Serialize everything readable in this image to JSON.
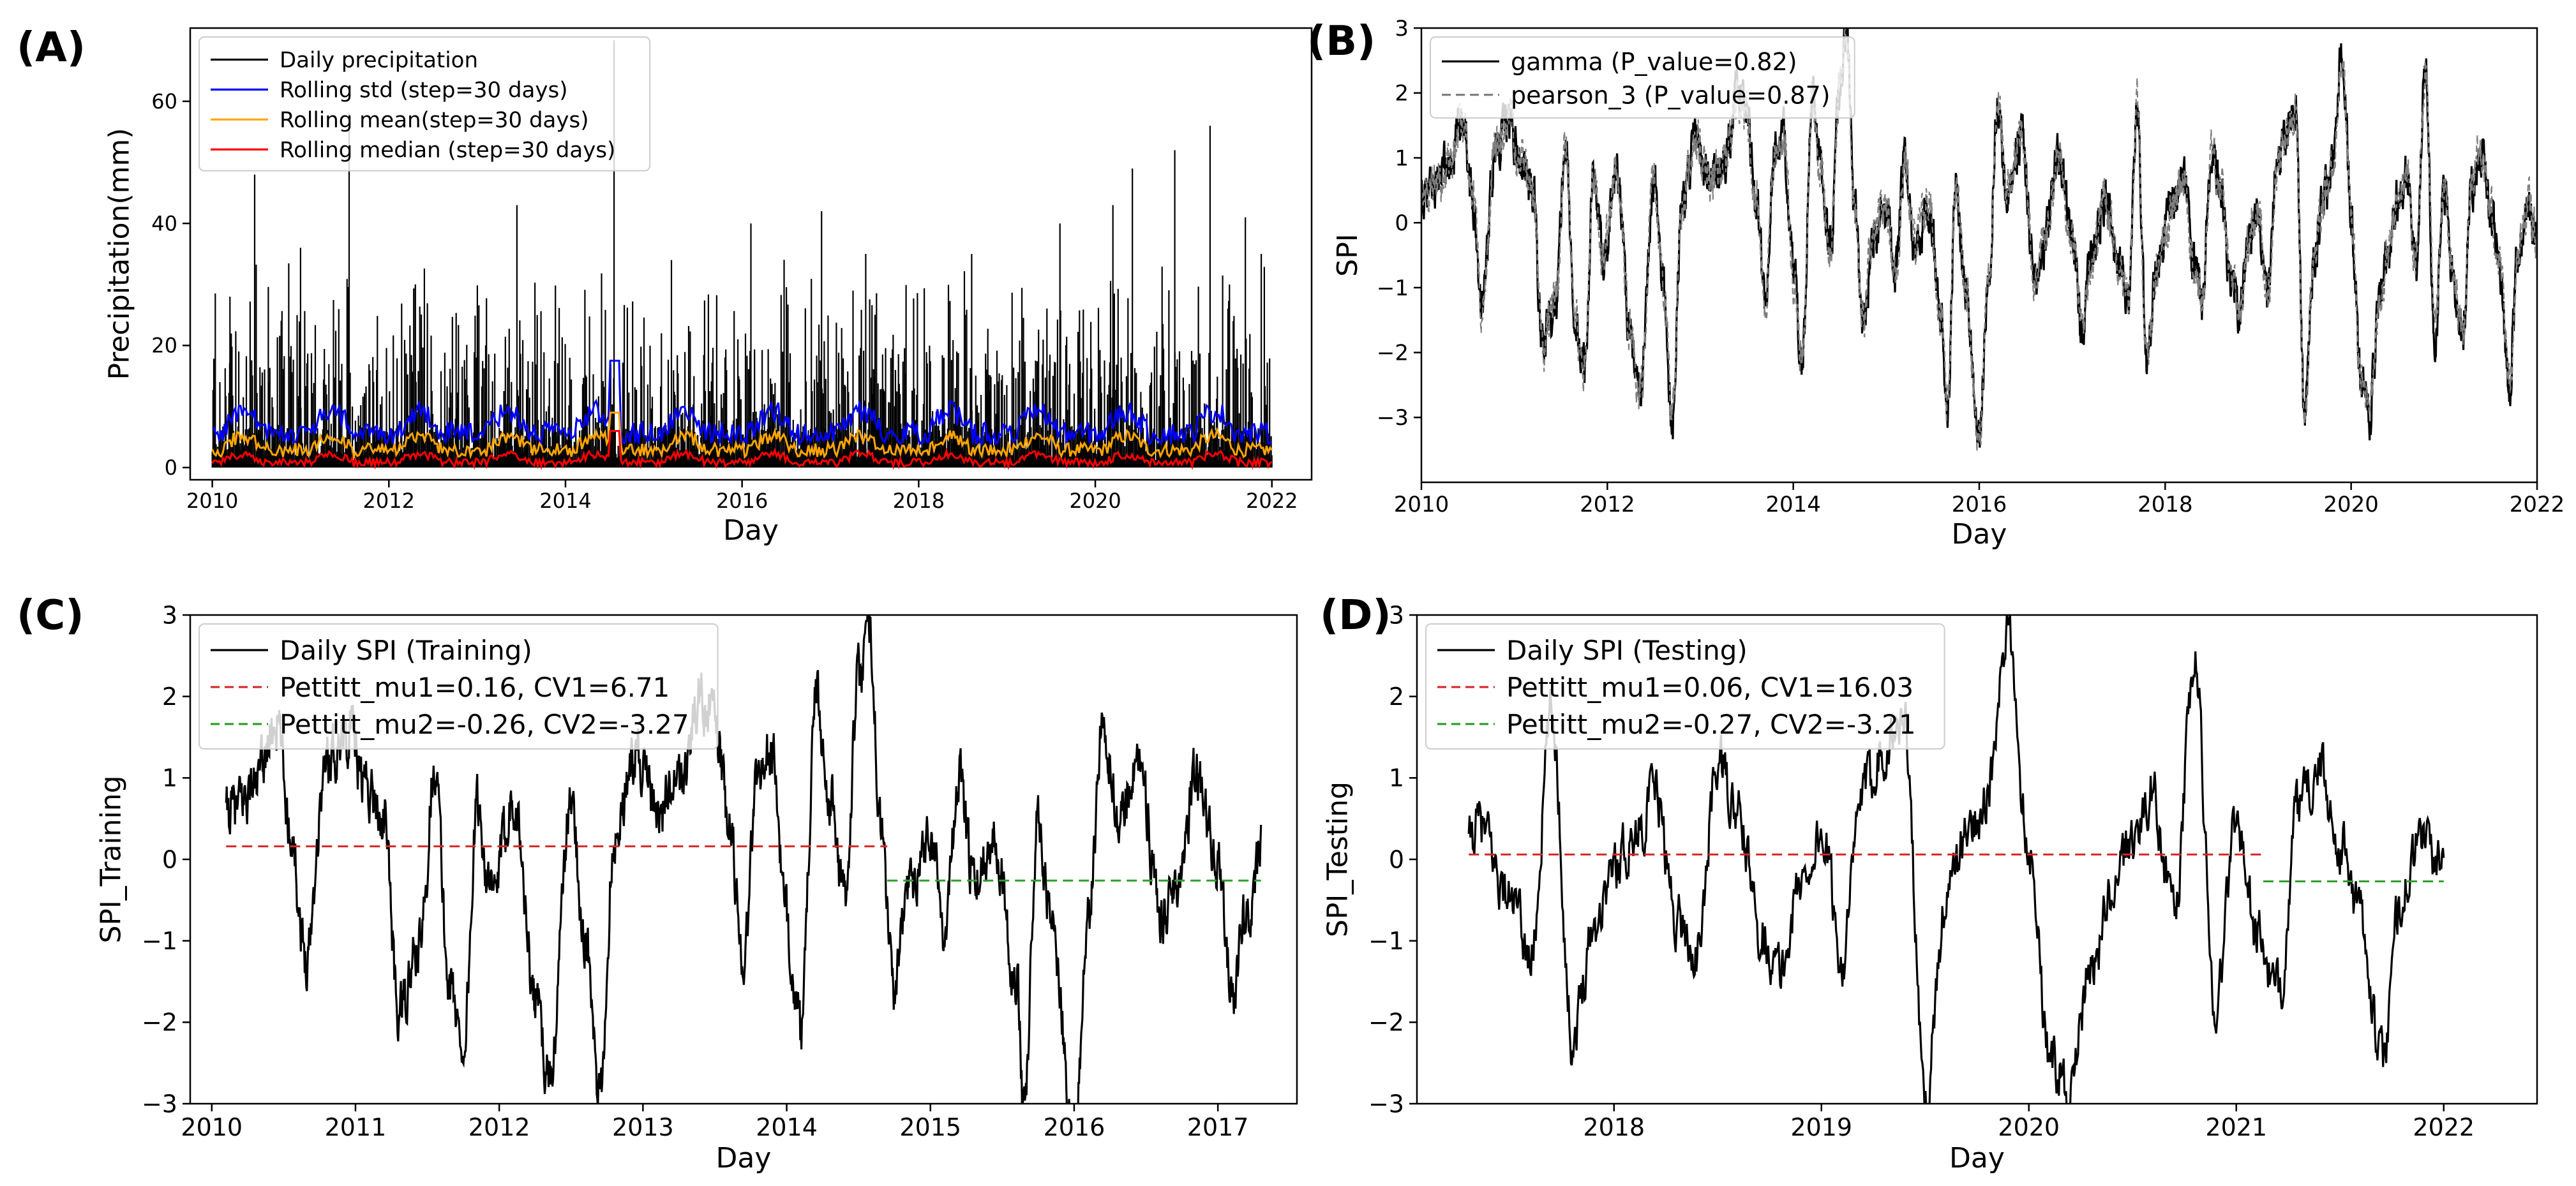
{
  "colors": {
    "black": "#000000",
    "blue": "#0000ff",
    "orange": "#ffa500",
    "red": "#ff0000",
    "gray": "#808080",
    "green": "#008000",
    "pettitt_red": "#d62728",
    "pettitt_green": "#2ca02c"
  },
  "chart_data": [
    {
      "panel_label": "(A)",
      "type": "line",
      "title": "",
      "xlabel": "Day",
      "ylabel": "Precipitation(mm)",
      "xlim": [
        2009.75,
        2022.45
      ],
      "ylim": [
        -2,
        72
      ],
      "xticks": [
        2010,
        2012,
        2014,
        2016,
        2018,
        2020,
        2022
      ],
      "xtick_labels": [
        "2010",
        "2012",
        "2014",
        "2016",
        "2018",
        "2020",
        "2022"
      ],
      "yticks": [
        0,
        20,
        40,
        60
      ],
      "ytick_labels": [
        "0",
        "20",
        "40",
        "60"
      ],
      "legend_position": "upper-left",
      "series": [
        {
          "name": "Daily precipitation",
          "color": "#000000",
          "style": "solid",
          "kind": "spikes",
          "x_start": 2010.0,
          "x_end": 2022.0,
          "baseline": [
            1,
            7
          ],
          "peak_max": 70,
          "peaks": [
            [
              2010.2,
              28
            ],
            [
              2010.48,
              48
            ],
            [
              2011.0,
              36
            ],
            [
              2011.55,
              58
            ],
            [
              2012.3,
              30
            ],
            [
              2013.45,
              43
            ],
            [
              2014.55,
              70
            ],
            [
              2015.2,
              34
            ],
            [
              2016.1,
              40
            ],
            [
              2016.9,
              42
            ],
            [
              2017.4,
              35
            ],
            [
              2018.6,
              35
            ],
            [
              2019.6,
              40
            ],
            [
              2020.2,
              43
            ],
            [
              2020.42,
              49
            ],
            [
              2020.9,
              52
            ],
            [
              2021.3,
              56
            ],
            [
              2021.7,
              41
            ],
            [
              2021.88,
              35
            ]
          ]
        },
        {
          "name": "Rolling std (step=30 days)",
          "color": "#0000ff",
          "style": "solid",
          "kind": "smooth",
          "base": 5,
          "amplitude": 4,
          "max": 17.5
        },
        {
          "name": "Rolling mean(step=30 days)",
          "color": "#ffa500",
          "style": "solid",
          "kind": "smooth",
          "base": 2.5,
          "amplitude": 2.5,
          "max": 9
        },
        {
          "name": "Rolling median (step=30 days)",
          "color": "#ff0000",
          "style": "solid",
          "kind": "smooth",
          "base": 0.6,
          "amplitude": 1.5,
          "max": 6
        }
      ]
    },
    {
      "panel_label": "(B)",
      "type": "line",
      "title": "",
      "xlabel": "Day",
      "ylabel": "SPI",
      "xlim": [
        2010,
        2022
      ],
      "ylim": [
        -4,
        3
      ],
      "xticks": [
        2010,
        2012,
        2014,
        2016,
        2018,
        2020,
        2022
      ],
      "xtick_labels": [
        "2010",
        "2012",
        "2014",
        "2016",
        "2018",
        "2020",
        "2022"
      ],
      "yticks": [
        -3,
        -2,
        -1,
        0,
        1,
        2,
        3
      ],
      "ytick_labels": [
        "−3",
        "−2",
        "−1",
        "0",
        "1",
        "2",
        "3"
      ],
      "legend_position": "upper-left",
      "series": [
        {
          "name": "gamma (P_value=0.82)",
          "color": "#000000",
          "style": "solid",
          "kind": "spi"
        },
        {
          "name": "pearson_3 (P_value=0.87)",
          "color": "#808080",
          "style": "dashed",
          "kind": "spi"
        }
      ]
    },
    {
      "panel_label": "(C)",
      "type": "line",
      "title": "",
      "xlabel": "Day",
      "ylabel": "SPI_Training",
      "xlim": [
        2009.85,
        2017.55
      ],
      "ylim": [
        -3,
        3
      ],
      "xticks": [
        2010,
        2011,
        2012,
        2013,
        2014,
        2015,
        2016,
        2017
      ],
      "xtick_labels": [
        "2010",
        "2011",
        "2012",
        "2013",
        "2014",
        "2015",
        "2016",
        "2017"
      ],
      "yticks": [
        -3,
        -2,
        -1,
        0,
        1,
        2,
        3
      ],
      "ytick_labels": [
        "−3",
        "−2",
        "−1",
        "0",
        "1",
        "2",
        "3"
      ],
      "legend_position": "upper-left",
      "series": [
        {
          "name": "Daily SPI (Training)",
          "color": "#000000",
          "style": "solid",
          "kind": "spi",
          "x_start": 2010.1,
          "x_end": 2017.3
        },
        {
          "name": "Pettitt_mu1=0.16, CV1=6.71",
          "color": "#d62728",
          "style": "dashed",
          "kind": "hline",
          "y": 0.16,
          "x_start": 2010.1,
          "x_end": 2014.7
        },
        {
          "name": "Pettitt_mu2=-0.26, CV2=-3.27",
          "color": "#2ca02c",
          "style": "dashed",
          "kind": "hline",
          "y": -0.26,
          "x_start": 2014.7,
          "x_end": 2017.3
        }
      ]
    },
    {
      "panel_label": "(D)",
      "type": "line",
      "title": "",
      "xlabel": "Day",
      "ylabel": "SPI_Testing",
      "xlim": [
        2017.05,
        2022.45
      ],
      "ylim": [
        -3,
        3
      ],
      "xticks": [
        2018,
        2019,
        2020,
        2021,
        2022
      ],
      "xtick_labels": [
        "2018",
        "2019",
        "2020",
        "2021",
        "2022"
      ],
      "yticks": [
        -3,
        -2,
        -1,
        0,
        1,
        2,
        3
      ],
      "ytick_labels": [
        "−3",
        "−2",
        "−1",
        "0",
        "1",
        "2",
        "3"
      ],
      "legend_position": "upper-left",
      "series": [
        {
          "name": "Daily SPI (Testing)",
          "color": "#000000",
          "style": "solid",
          "kind": "spi",
          "x_start": 2017.3,
          "x_end": 2022.0
        },
        {
          "name": "Pettitt_mu1=0.06, CV1=16.03",
          "color": "#d62728",
          "style": "dashed",
          "kind": "hline",
          "y": 0.06,
          "x_start": 2017.3,
          "x_end": 2021.13
        },
        {
          "name": "Pettitt_mu2=-0.27, CV2=-3.21",
          "color": "#2ca02c",
          "style": "dashed",
          "kind": "hline",
          "y": -0.27,
          "x_start": 2021.13,
          "x_end": 2022.0
        }
      ]
    }
  ],
  "spi_keypoints": [
    [
      2010.0,
      0.3
    ],
    [
      2010.15,
      0.6
    ],
    [
      2010.3,
      0.9
    ],
    [
      2010.45,
      1.7
    ],
    [
      2010.55,
      0.4
    ],
    [
      2010.65,
      -1.2
    ],
    [
      2010.8,
      1.2
    ],
    [
      2010.95,
      1.6
    ],
    [
      2011.05,
      1.0
    ],
    [
      2011.2,
      0.5
    ],
    [
      2011.3,
      -1.9
    ],
    [
      2011.45,
      -1.1
    ],
    [
      2011.55,
      1.2
    ],
    [
      2011.65,
      -1.5
    ],
    [
      2011.75,
      -2.3
    ],
    [
      2011.85,
      0.6
    ],
    [
      2011.95,
      -0.5
    ],
    [
      2012.1,
      0.8
    ],
    [
      2012.25,
      -1.7
    ],
    [
      2012.35,
      -2.7
    ],
    [
      2012.5,
      0.7
    ],
    [
      2012.6,
      -1.0
    ],
    [
      2012.7,
      -3.0
    ],
    [
      2012.8,
      0.3
    ],
    [
      2012.95,
      1.3
    ],
    [
      2013.1,
      0.6
    ],
    [
      2013.25,
      0.9
    ],
    [
      2013.4,
      2.0
    ],
    [
      2013.5,
      1.7
    ],
    [
      2013.6,
      0.4
    ],
    [
      2013.7,
      -1.2
    ],
    [
      2013.8,
      1.1
    ],
    [
      2013.9,
      1.3
    ],
    [
      2014.0,
      -0.8
    ],
    [
      2014.1,
      -2.2
    ],
    [
      2014.2,
      2.0
    ],
    [
      2014.3,
      0.8
    ],
    [
      2014.4,
      -0.5
    ],
    [
      2014.5,
      2.2
    ],
    [
      2014.58,
      2.9
    ],
    [
      2014.65,
      0.4
    ],
    [
      2014.75,
      -1.6
    ],
    [
      2014.85,
      -0.3
    ],
    [
      2015.0,
      0.3
    ],
    [
      2015.1,
      -0.8
    ],
    [
      2015.2,
      1.0
    ],
    [
      2015.3,
      -0.3
    ],
    [
      2015.45,
      0.3
    ],
    [
      2015.6,
      -1.5
    ],
    [
      2015.65,
      -3.0
    ],
    [
      2015.75,
      0.5
    ],
    [
      2015.85,
      -0.9
    ],
    [
      2016.0,
      -3.4
    ],
    [
      2016.1,
      -0.8
    ],
    [
      2016.2,
      1.8
    ],
    [
      2016.3,
      0.5
    ],
    [
      2016.45,
      1.3
    ],
    [
      2016.6,
      -0.8
    ],
    [
      2016.7,
      -0.3
    ],
    [
      2016.85,
      1.0
    ],
    [
      2017.0,
      -0.1
    ],
    [
      2017.1,
      -1.6
    ],
    [
      2017.2,
      -0.6
    ],
    [
      2017.35,
      0.4
    ],
    [
      2017.5,
      -0.5
    ],
    [
      2017.6,
      -1.2
    ],
    [
      2017.7,
      1.8
    ],
    [
      2017.8,
      -2.2
    ],
    [
      2017.9,
      -0.8
    ],
    [
      2018.0,
      -0.1
    ],
    [
      2018.1,
      0.3
    ],
    [
      2018.2,
      0.8
    ],
    [
      2018.3,
      -0.7
    ],
    [
      2018.4,
      -1.2
    ],
    [
      2018.5,
      1.2
    ],
    [
      2018.6,
      0.5
    ],
    [
      2018.7,
      -0.8
    ],
    [
      2018.8,
      -1.4
    ],
    [
      2018.9,
      -0.3
    ],
    [
      2019.0,
      0.3
    ],
    [
      2019.1,
      -1.2
    ],
    [
      2019.2,
      0.8
    ],
    [
      2019.3,
      1.4
    ],
    [
      2019.4,
      1.7
    ],
    [
      2019.5,
      -3.0
    ],
    [
      2019.6,
      -0.5
    ],
    [
      2019.7,
      0.3
    ],
    [
      2019.8,
      0.8
    ],
    [
      2019.9,
      2.7
    ],
    [
      2020.0,
      0.2
    ],
    [
      2020.1,
      -2.4
    ],
    [
      2020.2,
      -2.9
    ],
    [
      2020.3,
      -1.3
    ],
    [
      2020.4,
      -0.5
    ],
    [
      2020.5,
      0.3
    ],
    [
      2020.6,
      0.8
    ],
    [
      2020.7,
      -0.7
    ],
    [
      2020.8,
      2.4
    ],
    [
      2020.9,
      -1.8
    ],
    [
      2021.0,
      0.5
    ],
    [
      2021.1,
      -0.9
    ],
    [
      2021.2,
      -1.7
    ],
    [
      2021.3,
      0.6
    ],
    [
      2021.4,
      1.1
    ],
    [
      2021.5,
      0.2
    ],
    [
      2021.6,
      -0.7
    ],
    [
      2021.7,
      -2.5
    ],
    [
      2021.8,
      -0.4
    ],
    [
      2021.9,
      0.3
    ],
    [
      2022.0,
      -0.2
    ]
  ]
}
